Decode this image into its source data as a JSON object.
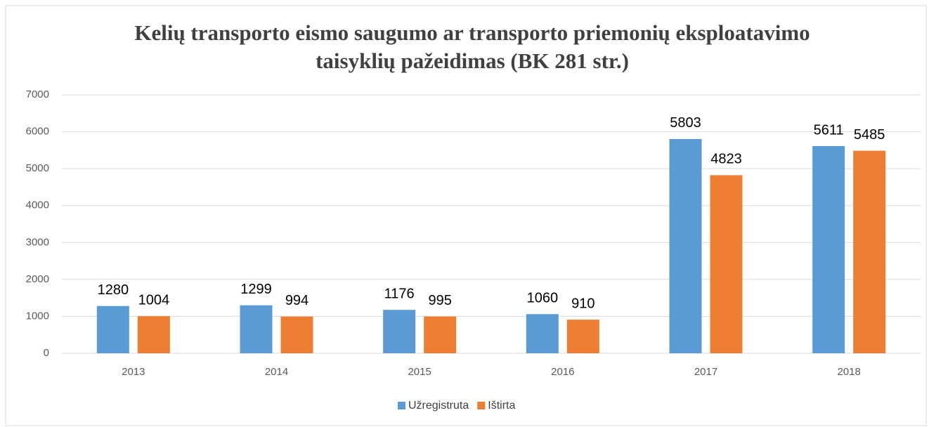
{
  "chart_data": {
    "type": "bar",
    "title": [
      "Kelių transporto eismo saugumo ar transporto priemonių eksploatavimo",
      "taisyklių pažeidimas (BK 281 str.)"
    ],
    "categories": [
      "2013",
      "2014",
      "2015",
      "2016",
      "2017",
      "2018"
    ],
    "series": [
      {
        "name": "Užregistruta",
        "color": "#5b9bd5",
        "values": [
          1280,
          1299,
          1176,
          1060,
          5803,
          5611
        ]
      },
      {
        "name": "Ištirta",
        "color": "#ed7d31",
        "values": [
          1004,
          994,
          995,
          910,
          4823,
          5485
        ]
      }
    ],
    "ylim": [
      0,
      7000
    ],
    "yticks": [
      0,
      1000,
      2000,
      3000,
      4000,
      5000,
      6000,
      7000
    ],
    "grid": true,
    "legend": "bottom"
  }
}
